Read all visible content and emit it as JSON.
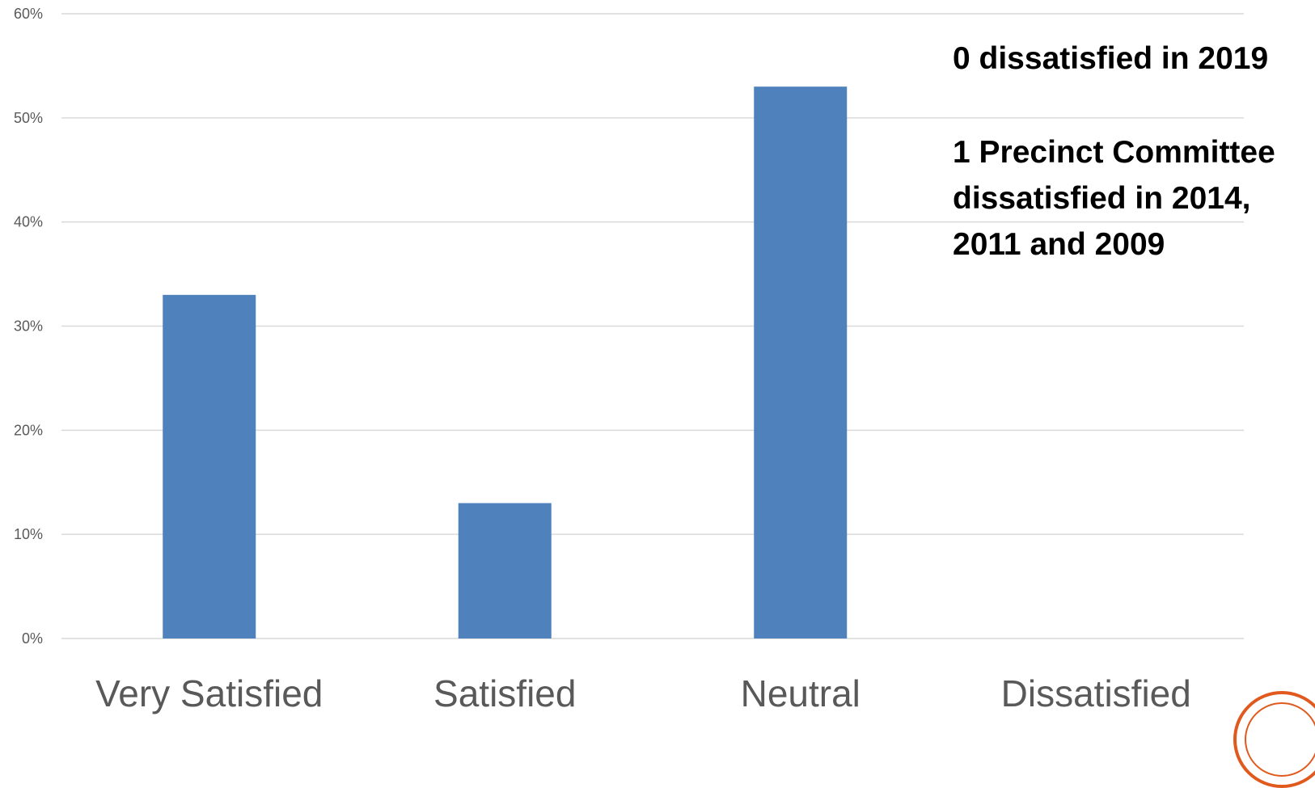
{
  "chart_data": {
    "type": "bar",
    "categories": [
      "Very Satisfied",
      "Satisfied",
      "Neutral",
      "Dissatisfied"
    ],
    "values": [
      33,
      13,
      53,
      0
    ],
    "ylim": [
      0,
      60
    ],
    "yticks": [
      0,
      10,
      20,
      30,
      40,
      50,
      60
    ],
    "ytick_suffix": "%",
    "grid": true,
    "bar_color": "#4f81bd",
    "annotations": [
      "0 dissatisfied in 2019",
      "1 Precinct Committee dissatisfied in 2014, 2011 and 2009"
    ]
  },
  "seal": {
    "color": "#e05a1e"
  }
}
